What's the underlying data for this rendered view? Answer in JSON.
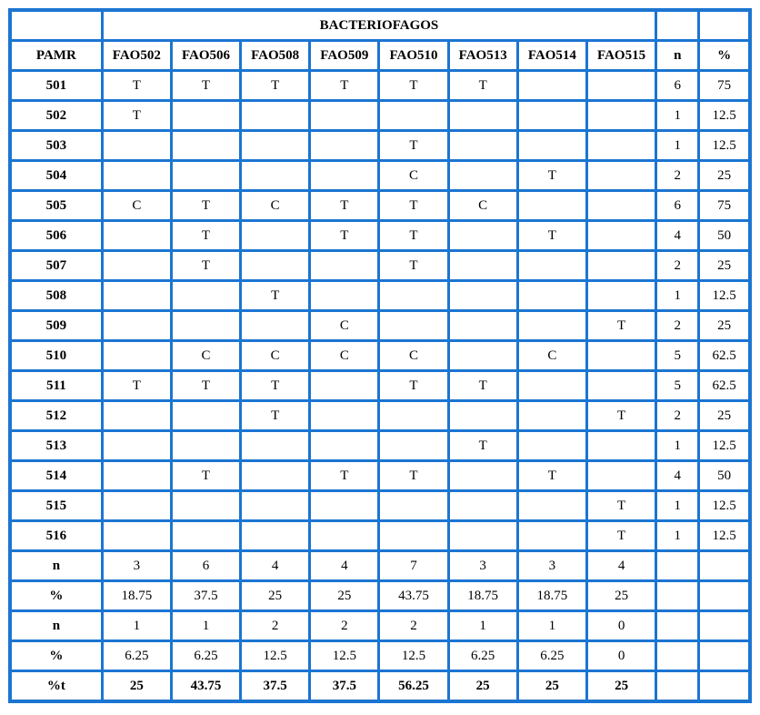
{
  "table": {
    "group_header": "BACTERIOFAGOS",
    "columns": [
      "PAMR",
      "FAO502",
      "FAO506",
      "FAO508",
      "FAO509",
      "FAO510",
      "FAO513",
      "FAO514",
      "FAO515",
      "n",
      "%"
    ],
    "phage_columns": [
      "FAO502",
      "FAO506",
      "FAO508",
      "FAO509",
      "FAO510",
      "FAO513",
      "FAO514",
      "FAO515"
    ],
    "rows": [
      {
        "label": "501",
        "cells": [
          "T",
          "T",
          "T",
          "T",
          "T",
          "T",
          "",
          ""
        ],
        "n": "6",
        "pct": "75"
      },
      {
        "label": "502",
        "cells": [
          "T",
          "",
          "",
          "",
          "",
          "",
          "",
          ""
        ],
        "n": "1",
        "pct": "12.5"
      },
      {
        "label": "503",
        "cells": [
          "",
          "",
          "",
          "",
          "T",
          "",
          "",
          ""
        ],
        "n": "1",
        "pct": "12.5"
      },
      {
        "label": "504",
        "cells": [
          "",
          "",
          "",
          "",
          "C",
          "",
          "T",
          ""
        ],
        "n": "2",
        "pct": "25"
      },
      {
        "label": "505",
        "cells": [
          "C",
          "T",
          "C",
          "T",
          "T",
          "C",
          "",
          ""
        ],
        "n": "6",
        "pct": "75"
      },
      {
        "label": "506",
        "cells": [
          "",
          "T",
          "",
          "T",
          "T",
          "",
          "T",
          ""
        ],
        "n": "4",
        "pct": "50"
      },
      {
        "label": "507",
        "cells": [
          "",
          "T",
          "",
          "",
          "T",
          "",
          "",
          ""
        ],
        "n": "2",
        "pct": "25"
      },
      {
        "label": "508",
        "cells": [
          "",
          "",
          "T",
          "",
          "",
          "",
          "",
          ""
        ],
        "n": "1",
        "pct": "12.5"
      },
      {
        "label": "509",
        "cells": [
          "",
          "",
          "",
          "C",
          "",
          "",
          "",
          "T"
        ],
        "n": "2",
        "pct": "25"
      },
      {
        "label": "510",
        "cells": [
          "",
          "C",
          "C",
          "C",
          "C",
          "",
          "C",
          ""
        ],
        "n": "5",
        "pct": "62.5"
      },
      {
        "label": "511",
        "cells": [
          "T",
          "T",
          "T",
          "",
          "T",
          "T",
          "",
          ""
        ],
        "n": "5",
        "pct": "62.5"
      },
      {
        "label": "512",
        "cells": [
          "",
          "",
          "T",
          "",
          "",
          "",
          "",
          "T"
        ],
        "n": "2",
        "pct": "25"
      },
      {
        "label": "513",
        "cells": [
          "",
          "",
          "",
          "",
          "",
          "T",
          "",
          ""
        ],
        "n": "1",
        "pct": "12.5"
      },
      {
        "label": "514",
        "cells": [
          "",
          "T",
          "",
          "T",
          "T",
          "",
          "T",
          ""
        ],
        "n": "4",
        "pct": "50"
      },
      {
        "label": "515",
        "cells": [
          "",
          "",
          "",
          "",
          "",
          "",
          "",
          "T"
        ],
        "n": "1",
        "pct": "12.5"
      },
      {
        "label": "516",
        "cells": [
          "",
          "",
          "",
          "",
          "",
          "",
          "",
          "T"
        ],
        "n": "1",
        "pct": "12.5"
      }
    ],
    "summary_rows": [
      {
        "label": "n",
        "style": "green",
        "values": [
          "3",
          "6",
          "4",
          "4",
          "7",
          "3",
          "3",
          "4"
        ],
        "n": "",
        "pct": ""
      },
      {
        "label": "%",
        "style": "green",
        "values": [
          "18.75",
          "37.5",
          "25",
          "25",
          "43.75",
          "18.75",
          "18.75",
          "25"
        ],
        "n": "",
        "pct": ""
      },
      {
        "label": "n",
        "style": "yellow",
        "values": [
          "1",
          "1",
          "2",
          "2",
          "2",
          "1",
          "1",
          "0"
        ],
        "n": "",
        "pct": ""
      },
      {
        "label": "%",
        "style": "yellow",
        "values": [
          "6.25",
          "6.25",
          "12.5",
          "12.5",
          "12.5",
          "6.25",
          "6.25",
          "0"
        ],
        "n": "",
        "pct": ""
      },
      {
        "label": "%t",
        "style": "white",
        "values": [
          "25",
          "43.75",
          "37.5",
          "37.5",
          "56.25",
          "25",
          "25",
          "25"
        ],
        "n": "",
        "pct": ""
      }
    ],
    "legend": {
      "t_value": "T",
      "c_value": "C"
    },
    "colors": {
      "border_blue": "#1b75d1",
      "t_cell_green": "#7dcb8e",
      "c_cell_yellow": "#ffff00",
      "summary_green": "#b7dfc4",
      "summary_yellow": "#ffff00",
      "text": "#000000"
    }
  }
}
